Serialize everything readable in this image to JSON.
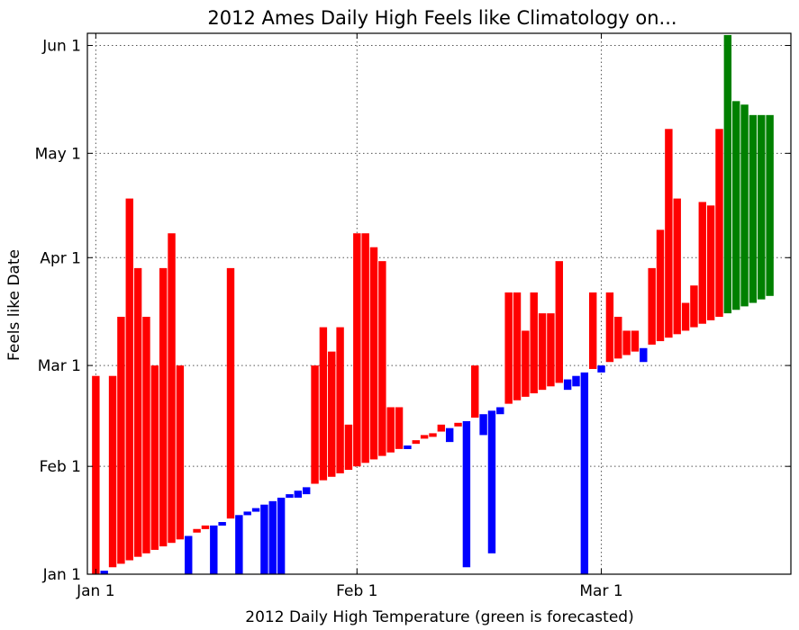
{
  "chart_data": {
    "type": "bar",
    "title": "2012 Ames Daily High Feels like Climatology on...",
    "xlabel": "2012 Daily High Temperature (green is forecasted)",
    "ylabel": "Feels like Date",
    "x_ticks": [
      {
        "label": "Jan 1",
        "day": 0
      },
      {
        "label": "Feb 1",
        "day": 31
      },
      {
        "label": "Mar 1",
        "day": 60
      }
    ],
    "y_ticks": [
      {
        "label": "Jan 1",
        "day": 0
      },
      {
        "label": "Feb 1",
        "day": 31
      },
      {
        "label": "Mar 1",
        "day": 60
      },
      {
        "label": "Apr 1",
        "day": 91
      },
      {
        "label": "May 1",
        "day": 121
      },
      {
        "label": "Jun 1",
        "day": 152
      }
    ],
    "xlim": [
      -1,
      82.5
    ],
    "ylim": [
      0,
      155.5
    ],
    "grid": true,
    "colors": {
      "warmer": "#ff0000",
      "colder": "#0000ff",
      "forecast": "#008000"
    },
    "feels_like_day": [
      57,
      0,
      57,
      74,
      108,
      88,
      74,
      60,
      88,
      98,
      60,
      0,
      13,
      14,
      0,
      14,
      88,
      0,
      17,
      18,
      0,
      0,
      0,
      22,
      22,
      23,
      60,
      71,
      64,
      71,
      43,
      98,
      98,
      94,
      90,
      48,
      48,
      36,
      38,
      40,
      40,
      43,
      38,
      43,
      2,
      60,
      40,
      6,
      46,
      81,
      81,
      70,
      81,
      75,
      75,
      90,
      53,
      54,
      0,
      81,
      58,
      81,
      74,
      70,
      70,
      61,
      88,
      99,
      128,
      108,
      78,
      83,
      107,
      106,
      128,
      155,
      136,
      135,
      132,
      132,
      132
    ],
    "forecast_start_index": 75
  }
}
